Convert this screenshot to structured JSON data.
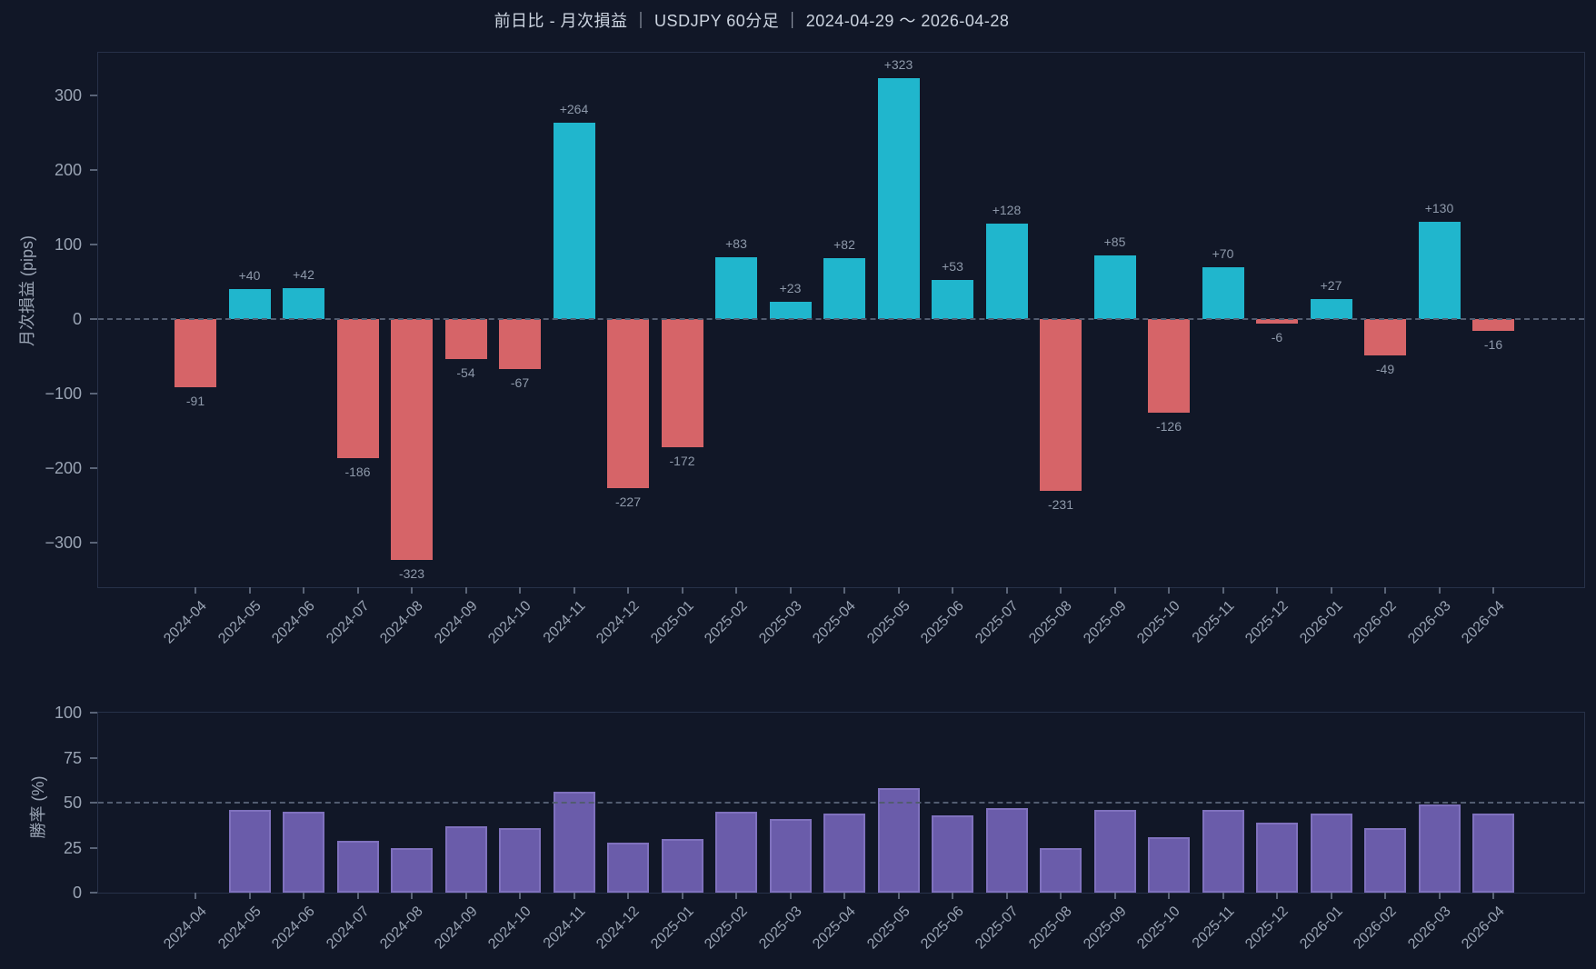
{
  "title": "前日比 - 月次損益 ｜ USDJPY 60分足 ｜ 2024-04-29 〜 2026-04-28",
  "colors": {
    "background": "#111727",
    "positive_bar": "#20b6cd",
    "negative_bar": "#d66468",
    "win_rate_bar": "#6a5caa",
    "win_rate_bar_border": "#7f71bd",
    "tick_text": "#9aa4b4",
    "title_text": "#ccd4e0",
    "value_label_text": "#8e99aa",
    "dashed_line": "#525c70",
    "plot_border": "#273149"
  },
  "chart_data": [
    {
      "type": "bar",
      "name": "monthly-pnl",
      "ylabel": "月次損益 (pips)",
      "categories": [
        "2024-04",
        "2024-05",
        "2024-06",
        "2024-07",
        "2024-08",
        "2024-09",
        "2024-10",
        "2024-11",
        "2024-12",
        "2025-01",
        "2025-02",
        "2025-03",
        "2025-04",
        "2025-05",
        "2025-06",
        "2025-07",
        "2025-08",
        "2025-09",
        "2025-10",
        "2025-11",
        "2025-12",
        "2026-01",
        "2026-02",
        "2026-03",
        "2026-04"
      ],
      "values": [
        -91,
        40,
        42,
        -186,
        -323,
        -54,
        -67,
        264,
        -227,
        -172,
        83,
        23,
        82,
        323,
        53,
        128,
        -231,
        85,
        -126,
        70,
        -6,
        27,
        -49,
        130,
        -16
      ],
      "ylim": [
        -360,
        357
      ],
      "yticks": [
        300,
        200,
        100,
        0,
        -100,
        -200,
        -300
      ],
      "ref_lines": [
        0
      ],
      "positive_color": "#20b6cd",
      "negative_color": "#d66468",
      "bar_labels": true,
      "grid": false,
      "legend": false
    },
    {
      "type": "bar",
      "name": "win-rate",
      "ylabel": "勝率 (%)",
      "categories": [
        "2024-04",
        "2024-05",
        "2024-06",
        "2024-07",
        "2024-08",
        "2024-09",
        "2024-10",
        "2024-11",
        "2024-12",
        "2025-01",
        "2025-02",
        "2025-03",
        "2025-04",
        "2025-05",
        "2025-06",
        "2025-07",
        "2025-08",
        "2025-09",
        "2025-10",
        "2025-11",
        "2025-12",
        "2026-01",
        "2026-02",
        "2026-03",
        "2026-04"
      ],
      "values": [
        null,
        46,
        45,
        29,
        25,
        37,
        36,
        56,
        28,
        30,
        45,
        41,
        44,
        58,
        43,
        47,
        25,
        46,
        31,
        46,
        39,
        44,
        36,
        49,
        44
      ],
      "ylim": [
        0,
        100
      ],
      "yticks": [
        100,
        75,
        50,
        25,
        0
      ],
      "ref_lines": [
        50
      ],
      "series_color": "#6a5caa",
      "bar_border": "#7f71bd",
      "bar_labels": false,
      "grid": false,
      "legend": false
    }
  ]
}
